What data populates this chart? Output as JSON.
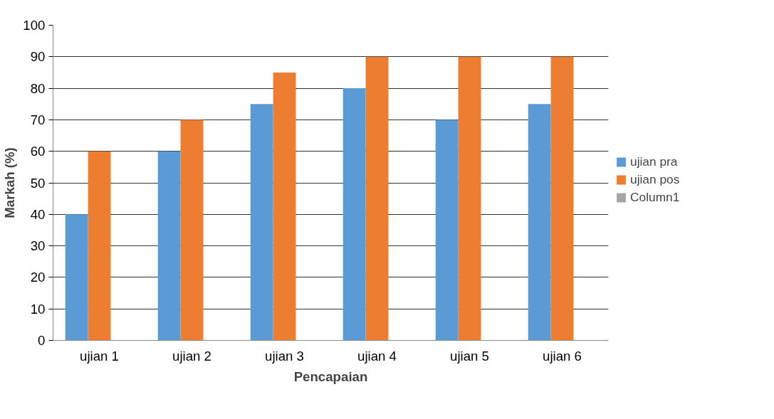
{
  "chart_data": {
    "type": "bar",
    "xlabel": "Pencapaian",
    "ylabel": "Markah (%)",
    "categories": [
      "ujian 1",
      "ujian 2",
      "ujian 3",
      "ujian 4",
      "ujian 5",
      "ujian 6"
    ],
    "series": [
      {
        "name": "ujian pra",
        "color": "#5b9bd5",
        "values": [
          40,
          60,
          75,
          80,
          70,
          75
        ]
      },
      {
        "name": "ujian pos",
        "color": "#ed7d31",
        "values": [
          60,
          70,
          85,
          90,
          90,
          90
        ]
      },
      {
        "name": "Column1",
        "color": "#a5a5a5",
        "values": [
          null,
          null,
          null,
          null,
          null,
          null
        ]
      }
    ],
    "ylim": [
      0,
      100
    ],
    "yticks": [
      0,
      10,
      20,
      30,
      40,
      50,
      60,
      70,
      80,
      90,
      100
    ],
    "grid": "y",
    "legend": "right"
  }
}
